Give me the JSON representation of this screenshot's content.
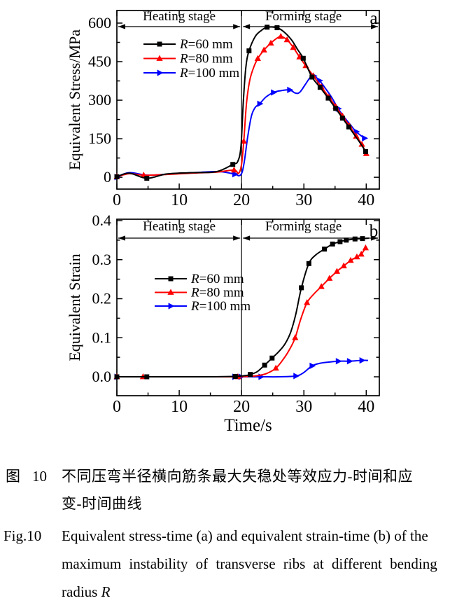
{
  "figure": {
    "caption_zh": {
      "fig_label": "图",
      "fig_num": "10",
      "line1": "不同压弯半径横向筋条最大失稳处等效应力-时间和应",
      "line2": "变-时间曲线"
    },
    "caption_en": {
      "fig_label": "Fig.10",
      "line1": "Equivalent stress-time (a) and equivalent strain-time (b) of the",
      "line2": "maximum instability of transverse ribs at different bending",
      "line3_prefix": "radius ",
      "line3_italic": "R"
    }
  },
  "chart_data": [
    {
      "id": "a",
      "type": "line",
      "panel_label": "a",
      "ylabel": "Equivalent Stress/MPa",
      "xlabel": "",
      "xlim": [
        0,
        42.1
      ],
      "ylim": [
        -46,
        649
      ],
      "x_ticks": [
        {
          "v": 0,
          "label": "0"
        },
        {
          "v": 10,
          "label": "10"
        },
        {
          "v": 20,
          "label": "20"
        },
        {
          "v": 30,
          "label": "30"
        },
        {
          "v": 40,
          "label": "40"
        }
      ],
      "x_minor": [
        5,
        15,
        25,
        35
      ],
      "y_ticks": [
        {
          "v": 0,
          "label": "0"
        },
        {
          "v": 150,
          "label": "150"
        },
        {
          "v": 300,
          "label": "300"
        },
        {
          "v": 450,
          "label": "450"
        },
        {
          "v": 600,
          "label": "600"
        }
      ],
      "y_minor": [
        75,
        225,
        375,
        525
      ],
      "stage_divider_x": 20,
      "annotations": {
        "heating_label": "Heating stage",
        "forming_label": "Forming stage"
      },
      "legend": [
        {
          "label": "R=60 mm",
          "color": "#000000",
          "marker": "square"
        },
        {
          "label": "R=80 mm",
          "color": "#ff0000",
          "marker": "triangle-up"
        },
        {
          "label": "R=100 mm",
          "color": "#0000ff",
          "marker": "triangle-right"
        }
      ],
      "series": [
        {
          "name": "R=100 mm",
          "color": "#0000ff",
          "marker": "triangle-right",
          "points": [
            [
              0,
              1,
              1
            ],
            [
              2,
              18,
              0
            ],
            [
              5,
              8,
              0
            ],
            [
              9,
              14,
              0
            ],
            [
              13,
              19,
              0
            ],
            [
              16.5,
              22,
              0
            ],
            [
              18.9,
              12,
              1
            ],
            [
              19.6,
              6,
              0
            ],
            [
              20.1,
              20,
              0
            ],
            [
              20.5,
              70,
              0
            ],
            [
              21,
              160,
              0
            ],
            [
              21.6,
              240,
              0
            ],
            [
              22.2,
              272,
              0
            ],
            [
              22.9,
              286,
              1
            ],
            [
              23.9,
              312,
              0
            ],
            [
              25.1,
              330,
              1
            ],
            [
              26.3,
              337,
              0
            ],
            [
              27.7,
              340,
              1
            ],
            [
              28.6,
              328,
              0
            ],
            [
              29.3,
              330,
              0
            ],
            [
              30.2,
              360,
              0
            ],
            [
              31,
              388,
              0
            ],
            [
              31.6,
              394,
              1
            ],
            [
              32.5,
              376,
              1
            ],
            [
              33.6,
              341,
              0
            ],
            [
              34.5,
              309,
              0
            ],
            [
              35.5,
              267,
              1
            ],
            [
              36.5,
              233,
              0
            ],
            [
              37.4,
              206,
              0
            ],
            [
              38.4,
              177,
              1
            ],
            [
              39.7,
              152,
              1
            ]
          ]
        },
        {
          "name": "R=80 mm",
          "color": "#ff0000",
          "marker": "triangle-up",
          "points": [
            [
              0,
              2,
              1
            ],
            [
              2,
              14,
              0
            ],
            [
              4.3,
              8,
              1
            ],
            [
              8,
              11,
              0
            ],
            [
              12,
              16,
              0
            ],
            [
              16,
              20,
              0
            ],
            [
              18.8,
              28,
              1
            ],
            [
              19.5,
              15,
              0
            ],
            [
              20,
              50,
              0
            ],
            [
              20.35,
              140,
              1
            ],
            [
              20.8,
              290,
              0
            ],
            [
              21.3,
              375,
              0
            ],
            [
              21.9,
              425,
              0
            ],
            [
              22.6,
              462,
              1
            ],
            [
              23.6,
              495,
              1
            ],
            [
              24.7,
              522,
              1
            ],
            [
              25.5,
              538,
              0
            ],
            [
              26.3,
              548,
              1
            ],
            [
              27.3,
              535,
              1
            ],
            [
              28.3,
              505,
              1
            ],
            [
              29.3,
              468,
              1
            ],
            [
              30.3,
              434,
              1
            ],
            [
              31.5,
              395,
              1
            ],
            [
              32.8,
              352,
              1
            ],
            [
              34,
              312,
              1
            ],
            [
              35.1,
              275,
              1
            ],
            [
              36.2,
              238,
              1
            ],
            [
              37.3,
              200,
              1
            ],
            [
              38.4,
              160,
              1
            ],
            [
              39.3,
              128,
              1
            ],
            [
              40,
              92,
              1
            ]
          ]
        },
        {
          "name": "R=60 mm",
          "color": "#000000",
          "marker": "square",
          "points": [
            [
              0,
              2,
              1
            ],
            [
              2,
              16,
              0
            ],
            [
              4.8,
              -4,
              1
            ],
            [
              8,
              13,
              0
            ],
            [
              12,
              18,
              0
            ],
            [
              16,
              22,
              0
            ],
            [
              18.6,
              50,
              1
            ],
            [
              19.4,
              62,
              0
            ],
            [
              19.9,
              120,
              0
            ],
            [
              20.3,
              300,
              0
            ],
            [
              20.7,
              430,
              0
            ],
            [
              21.2,
              492,
              1
            ],
            [
              22.2,
              548,
              0
            ],
            [
              23.2,
              572,
              0
            ],
            [
              24.1,
              584,
              1
            ],
            [
              25.7,
              582,
              1
            ],
            [
              26.8,
              566,
              0
            ],
            [
              28,
              535,
              0
            ],
            [
              29,
              497,
              0
            ],
            [
              29.9,
              463,
              1
            ],
            [
              31.3,
              390,
              1
            ],
            [
              32.6,
              350,
              1
            ],
            [
              33.9,
              308,
              1
            ],
            [
              35.1,
              268,
              1
            ],
            [
              36.2,
              230,
              1
            ],
            [
              37.2,
              196,
              1
            ],
            [
              38.2,
              162,
              0
            ],
            [
              39.1,
              131,
              0
            ],
            [
              39.9,
              100,
              1
            ]
          ]
        }
      ]
    },
    {
      "id": "b",
      "type": "line",
      "panel_label": "b",
      "ylabel": "Equivalent Strain",
      "xlabel": "Time/s",
      "xlim": [
        0,
        42.1
      ],
      "ylim": [
        -0.0484,
        0.4036
      ],
      "x_ticks": [
        {
          "v": 0,
          "label": "0"
        },
        {
          "v": 10,
          "label": "10"
        },
        {
          "v": 20,
          "label": "20"
        },
        {
          "v": 30,
          "label": "30"
        },
        {
          "v": 40,
          "label": "40"
        }
      ],
      "x_minor": [
        5,
        15,
        25,
        35
      ],
      "y_ticks": [
        {
          "v": 0,
          "label": "0.0"
        },
        {
          "v": 0.1,
          "label": "0.1"
        },
        {
          "v": 0.2,
          "label": "0.2"
        },
        {
          "v": 0.3,
          "label": "0.3"
        },
        {
          "v": 0.4,
          "label": "0.4"
        }
      ],
      "y_minor": [
        0.05,
        0.15,
        0.25,
        0.35
      ],
      "stage_divider_x": 20,
      "annotations": {
        "heating_label": "Heating stage",
        "forming_label": "Forming stage"
      },
      "legend": [
        {
          "label": "R=60 mm",
          "color": "#000000",
          "marker": "square"
        },
        {
          "label": "R=80 mm",
          "color": "#ff0000",
          "marker": "triangle-up"
        },
        {
          "label": "R=100 mm",
          "color": "#0000ff",
          "marker": "triangle-right"
        }
      ],
      "series": [
        {
          "name": "R=100 mm",
          "color": "#0000ff",
          "marker": "triangle-right",
          "points": [
            [
              0,
              0,
              1
            ],
            [
              5,
              0,
              0
            ],
            [
              10,
              0,
              0
            ],
            [
              15,
              0,
              0
            ],
            [
              18.9,
              0,
              1
            ],
            [
              19.9,
              0,
              1
            ],
            [
              23.1,
              0,
              1
            ],
            [
              26,
              0,
              0
            ],
            [
              28.7,
              0.002,
              1
            ],
            [
              29.9,
              0.01,
              0
            ],
            [
              31.3,
              0.028,
              1
            ],
            [
              32.4,
              0.034,
              0
            ],
            [
              33.6,
              0.037,
              0
            ],
            [
              35.5,
              0.04,
              1
            ],
            [
              37.3,
              0.04,
              1
            ],
            [
              39.3,
              0.042,
              1
            ],
            [
              40.3,
              0.042,
              0
            ]
          ]
        },
        {
          "name": "R=80 mm",
          "color": "#ff0000",
          "marker": "triangle-up",
          "points": [
            [
              0,
              0,
              1
            ],
            [
              4.2,
              0,
              1
            ],
            [
              10,
              0,
              0
            ],
            [
              15,
              0,
              0
            ],
            [
              19.4,
              0,
              1
            ],
            [
              21,
              0.001,
              0
            ],
            [
              22.6,
              0.003,
              0
            ],
            [
              24.1,
              0.009,
              0
            ],
            [
              25.5,
              0.022,
              1
            ],
            [
              26.7,
              0.045,
              0
            ],
            [
              27.7,
              0.07,
              0
            ],
            [
              28.6,
              0.1,
              1
            ],
            [
              29.5,
              0.148,
              0
            ],
            [
              30.5,
              0.19,
              1
            ],
            [
              31.6,
              0.212,
              0
            ],
            [
              32.8,
              0.231,
              1
            ],
            [
              34.1,
              0.252,
              1
            ],
            [
              35.3,
              0.27,
              1
            ],
            [
              36.4,
              0.284,
              1
            ],
            [
              37.5,
              0.298,
              1
            ],
            [
              38.5,
              0.307,
              1
            ],
            [
              39.2,
              0.314,
              1
            ],
            [
              39.9,
              0.33,
              1
            ]
          ]
        },
        {
          "name": "R=60 mm",
          "color": "#000000",
          "marker": "square",
          "points": [
            [
              0,
              0,
              1
            ],
            [
              4.8,
              0,
              1
            ],
            [
              10,
              0,
              0
            ],
            [
              15,
              0,
              0
            ],
            [
              19,
              0.001,
              1
            ],
            [
              20.6,
              0.003,
              0
            ],
            [
              21.4,
              0.006,
              1
            ],
            [
              22.5,
              0.013,
              0
            ],
            [
              23.7,
              0.03,
              1
            ],
            [
              24.9,
              0.048,
              1
            ],
            [
              26,
              0.065,
              0
            ],
            [
              27,
              0.085,
              0
            ],
            [
              27.9,
              0.115,
              0
            ],
            [
              28.7,
              0.16,
              0
            ],
            [
              29.6,
              0.228,
              1
            ],
            [
              30.8,
              0.29,
              1
            ],
            [
              31.9,
              0.312,
              0
            ],
            [
              33.3,
              0.327,
              1
            ],
            [
              34.6,
              0.34,
              1
            ],
            [
              35.8,
              0.346,
              1
            ],
            [
              36.8,
              0.35,
              1
            ],
            [
              38.2,
              0.353,
              1
            ],
            [
              39.4,
              0.354,
              1
            ],
            [
              40.4,
              0.355,
              0
            ]
          ]
        }
      ]
    }
  ]
}
